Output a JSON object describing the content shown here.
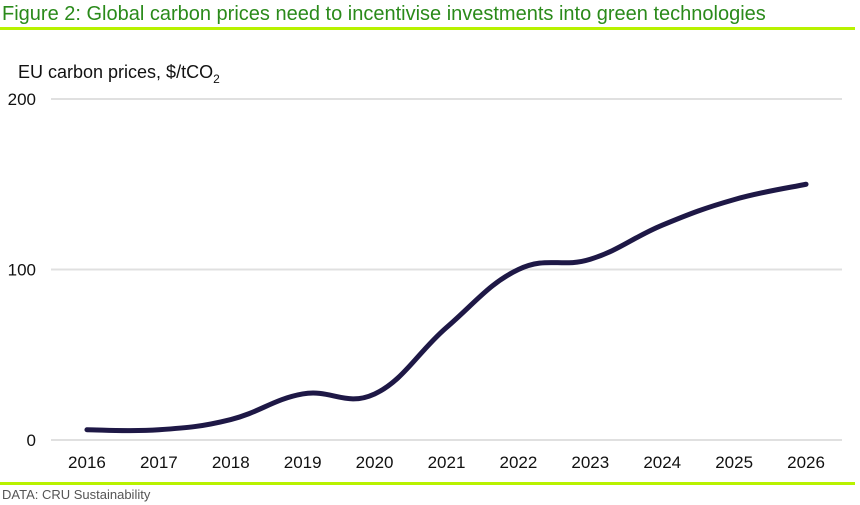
{
  "title": "Figure 2: Global carbon prices need to incentivise investments into green technologies",
  "source": "DATA: CRU Sustainability",
  "colors": {
    "title": "#2a8a1a",
    "rule": "#b8f200",
    "line": "#1e1846",
    "grid": "#e0e0e0"
  },
  "chart_data": {
    "type": "line",
    "title": "Figure 2: Global carbon prices need to incentivise investments into green technologies",
    "ylabel": "EU carbon prices, $/tCO",
    "ylabel_subscript": "2",
    "xlabel": "",
    "categories": [
      "2016",
      "2017",
      "2018",
      "2019",
      "2020",
      "2021",
      "2022",
      "2023",
      "2024",
      "2025",
      "2026"
    ],
    "series": [
      {
        "name": "EU carbon price",
        "values": [
          6,
          6,
          12,
          27,
          27,
          66,
          100,
          106,
          126,
          141,
          150
        ]
      }
    ],
    "ylim": [
      0,
      200
    ],
    "yticks": [
      0,
      100,
      200
    ],
    "grid": true,
    "smooth": true,
    "legend": "none"
  }
}
